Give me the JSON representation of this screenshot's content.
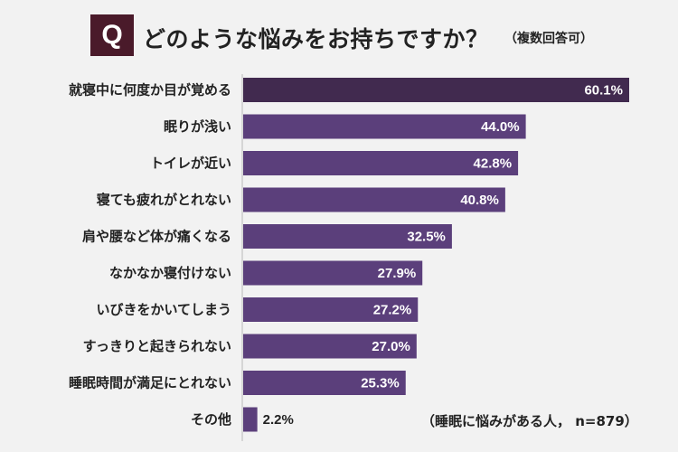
{
  "header": {
    "badge": "Q",
    "title": "どのような悩みをお持ちですか？",
    "subtitle": "（複数回答可）"
  },
  "footnote": "（睡眠に悩みがある人， n=879）",
  "colors": {
    "top_bar": "#412a4f",
    "bar": "#5b3f7b",
    "badge": "#4a1a2a",
    "background": "#f2f2f2"
  },
  "chart_data": {
    "type": "bar",
    "orientation": "horizontal",
    "title": "どのような悩みをお持ちですか？",
    "categories": [
      "就寝中に何度か目が覚める",
      "眠りが浅い",
      "トイレが近い",
      "寝ても疲れがとれない",
      "肩や腰など体が痛くなる",
      "なかなか寝付けない",
      "いびきをかいてしまう",
      "すっきりと起きられない",
      "睡眠時間が満足にとれない",
      "その他"
    ],
    "values": [
      60.1,
      44.0,
      42.8,
      40.8,
      32.5,
      27.9,
      27.2,
      27.0,
      25.3,
      2.2
    ],
    "value_labels": [
      "60.1%",
      "44.0%",
      "42.8%",
      "40.8%",
      "32.5%",
      "27.9%",
      "27.2%",
      "27.0%",
      "25.3%",
      "2.2%"
    ],
    "unit": "%",
    "xlim": [
      0,
      70
    ]
  }
}
